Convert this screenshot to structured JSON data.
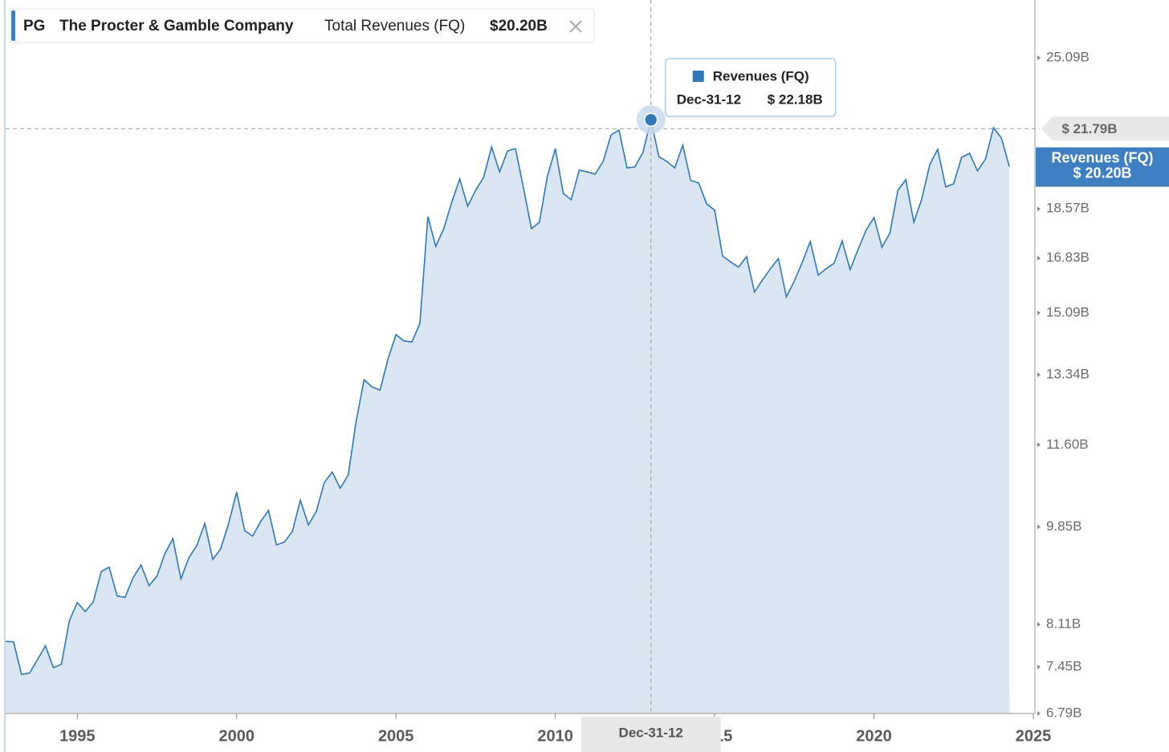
{
  "chart_data": {
    "type": "area",
    "header": {
      "ticker": "PG",
      "company": "The Procter & Gamble Company",
      "metric": "Total Revenues (FQ)"
    },
    "x": [
      1992.75,
      1993,
      1993.25,
      1993.5,
      1993.75,
      1994,
      1994.25,
      1994.5,
      1994.75,
      1995,
      1995.25,
      1995.5,
      1995.75,
      1996,
      1996.25,
      1996.5,
      1996.75,
      1997,
      1997.25,
      1997.5,
      1997.75,
      1998,
      1998.25,
      1998.5,
      1998.75,
      1999,
      1999.25,
      1999.5,
      1999.75,
      2000,
      2000.25,
      2000.5,
      2000.75,
      2001,
      2001.25,
      2001.5,
      2001.75,
      2002,
      2002.25,
      2002.5,
      2002.75,
      2003,
      2003.25,
      2003.5,
      2003.75,
      2004,
      2004.25,
      2004.5,
      2004.75,
      2005,
      2005.25,
      2005.5,
      2005.75,
      2006,
      2006.25,
      2006.5,
      2006.75,
      2007,
      2007.25,
      2007.5,
      2007.75,
      2008,
      2008.25,
      2008.5,
      2008.75,
      2009,
      2009.25,
      2009.5,
      2009.75,
      2010,
      2010.25,
      2010.5,
      2010.75,
      2011,
      2011.25,
      2011.5,
      2011.75,
      2012,
      2012.25,
      2012.5,
      2012.75,
      2013,
      2013.25,
      2013.5,
      2013.75,
      2014,
      2014.25,
      2014.5,
      2014.75,
      2015,
      2015.25,
      2015.5,
      2015.75,
      2016,
      2016.25,
      2016.5,
      2016.75,
      2017,
      2017.25,
      2017.5,
      2017.75,
      2018,
      2018.25,
      2018.5,
      2018.75,
      2019,
      2019.25,
      2019.5,
      2019.75,
      2020,
      2020.25,
      2020.5,
      2020.75,
      2021,
      2021.25,
      2021.5,
      2021.75,
      2022,
      2022.25,
      2022.5,
      2022.75,
      2023,
      2023.25,
      2023.5,
      2023.75,
      2024,
      2024.25
    ],
    "series": [
      {
        "name": "Revenues (FQ)",
        "color": "#2f78b8",
        "fill": "#dae6f2",
        "values": [
          7.84,
          7.83,
          7.34,
          7.36,
          7.56,
          7.77,
          7.44,
          7.49,
          8.17,
          8.47,
          8.32,
          8.48,
          9.01,
          9.09,
          8.58,
          8.56,
          8.9,
          9.13,
          8.76,
          8.93,
          9.34,
          9.62,
          8.88,
          9.26,
          9.49,
          9.92,
          9.23,
          9.43,
          9.92,
          10.56,
          9.78,
          9.67,
          9.95,
          10.18,
          9.5,
          9.56,
          9.76,
          10.39,
          9.89,
          10.16,
          10.76,
          10.99,
          10.64,
          10.92,
          12.16,
          13.21,
          13.02,
          12.94,
          13.77,
          14.45,
          14.27,
          14.24,
          14.78,
          18.28,
          17.23,
          17.85,
          18.82,
          19.71,
          18.67,
          19.27,
          19.77,
          21.01,
          19.99,
          20.84,
          20.94,
          19.36,
          17.85,
          18.08,
          19.8,
          20.94,
          19.15,
          18.91,
          20.06,
          19.99,
          19.9,
          20.41,
          21.52,
          21.73,
          20.15,
          20.19,
          20.78,
          22.18,
          20.61,
          20.41,
          20.15,
          21.08,
          19.65,
          19.55,
          18.75,
          18.52,
          16.9,
          16.71,
          16.53,
          16.88,
          15.73,
          16.11,
          16.48,
          16.82,
          15.58,
          16.08,
          16.69,
          17.4,
          16.27,
          16.48,
          16.66,
          17.42,
          16.45,
          17.12,
          17.79,
          18.25,
          17.2,
          17.7,
          19.27,
          19.68,
          18.08,
          18.94,
          20.28,
          20.91,
          19.4,
          19.52,
          20.58,
          20.74,
          20.03,
          20.51,
          21.83,
          21.38,
          20.2
        ]
      }
    ],
    "last": {
      "value": 20.2,
      "label": "$ 20.20B",
      "header_label": "$20.20B"
    },
    "tooltip": {
      "x": 2013,
      "date": "Dec-31-12",
      "value": 22.18,
      "label": "$ 22.18B"
    },
    "crosshair": {
      "value": 21.79,
      "label": "$ 21.79B"
    },
    "xlim": [
      1992.75,
      2025
    ],
    "xticks": [
      1995,
      2000,
      2005,
      2010,
      2015,
      2020,
      2025
    ],
    "ylim": [
      6.79,
      28.16
    ],
    "yscale": "log",
    "yticks": [
      {
        "value": 6.79,
        "label": "6.79B"
      },
      {
        "value": 7.45,
        "label": "7.45B"
      },
      {
        "value": 8.11,
        "label": "8.11B"
      },
      {
        "value": 9.85,
        "label": "9.85B"
      },
      {
        "value": 11.6,
        "label": "11.60B"
      },
      {
        "value": 13.34,
        "label": "13.34B"
      },
      {
        "value": 15.09,
        "label": "15.09B"
      },
      {
        "value": 16.83,
        "label": "16.83B"
      },
      {
        "value": 18.57,
        "label": "18.57B"
      },
      {
        "value": 25.09,
        "label": "25.09B"
      }
    ]
  }
}
